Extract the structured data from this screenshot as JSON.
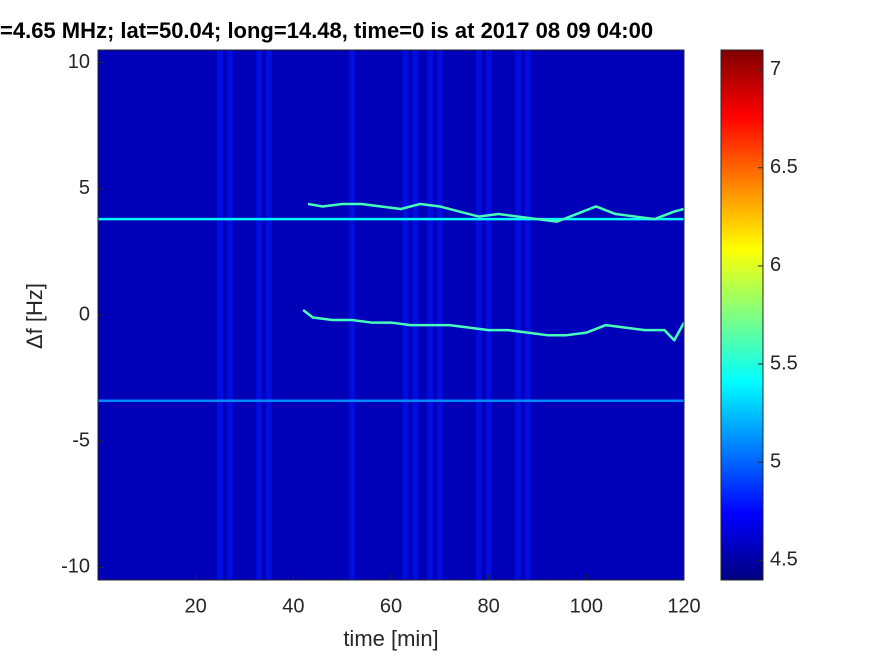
{
  "chart_data": {
    "type": "spectrogram",
    "title": "=4.65 MHz;  lat=50.04; long=14.48, time=0 is at 2017 08 09 04:00",
    "xlabel": "time [min]",
    "ylabel": "Δf [Hz]",
    "xlim": [
      0,
      120
    ],
    "ylim": [
      -10.5,
      10.5
    ],
    "xticks": [
      20,
      40,
      60,
      80,
      100,
      120
    ],
    "yticks": [
      -10,
      -5,
      0,
      5,
      10
    ],
    "colormap": "jet",
    "clim": [
      4.4,
      7.1
    ],
    "cticks": [
      4.5,
      5,
      5.5,
      6,
      6.5,
      7
    ],
    "background_level": 4.55,
    "bands": {
      "x": [
        25,
        27,
        33,
        35,
        52,
        63,
        65,
        68,
        70,
        78,
        80,
        86,
        88
      ],
      "width": 1.2,
      "level": 4.8
    },
    "series": [
      {
        "x": [
          0,
          120
        ],
        "values": [
          3.8,
          3.8
        ],
        "level": 5.4
      },
      {
        "x": [
          0,
          120
        ],
        "values": [
          -3.4,
          -3.4
        ],
        "level": 5.1
      },
      {
        "x": [
          43,
          46,
          50,
          54,
          58,
          62,
          66,
          70,
          74,
          78,
          82,
          86,
          90,
          94,
          98,
          102,
          106,
          110,
          114,
          118,
          120
        ],
        "values": [
          4.4,
          4.3,
          4.4,
          4.4,
          4.3,
          4.2,
          4.4,
          4.3,
          4.1,
          3.9,
          4.0,
          3.9,
          3.8,
          3.7,
          4.0,
          4.3,
          4.0,
          3.9,
          3.8,
          4.1,
          4.2
        ],
        "level": 5.6
      },
      {
        "x": [
          42,
          44,
          48,
          52,
          56,
          60,
          64,
          68,
          72,
          76,
          80,
          84,
          88,
          92,
          96,
          100,
          104,
          108,
          112,
          116,
          118,
          120
        ],
        "values": [
          0.2,
          -0.1,
          -0.2,
          -0.2,
          -0.3,
          -0.3,
          -0.4,
          -0.4,
          -0.4,
          -0.5,
          -0.6,
          -0.6,
          -0.7,
          -0.8,
          -0.8,
          -0.7,
          -0.4,
          -0.5,
          -0.6,
          -0.6,
          -1.0,
          -0.3
        ],
        "level": 5.6
      }
    ]
  }
}
